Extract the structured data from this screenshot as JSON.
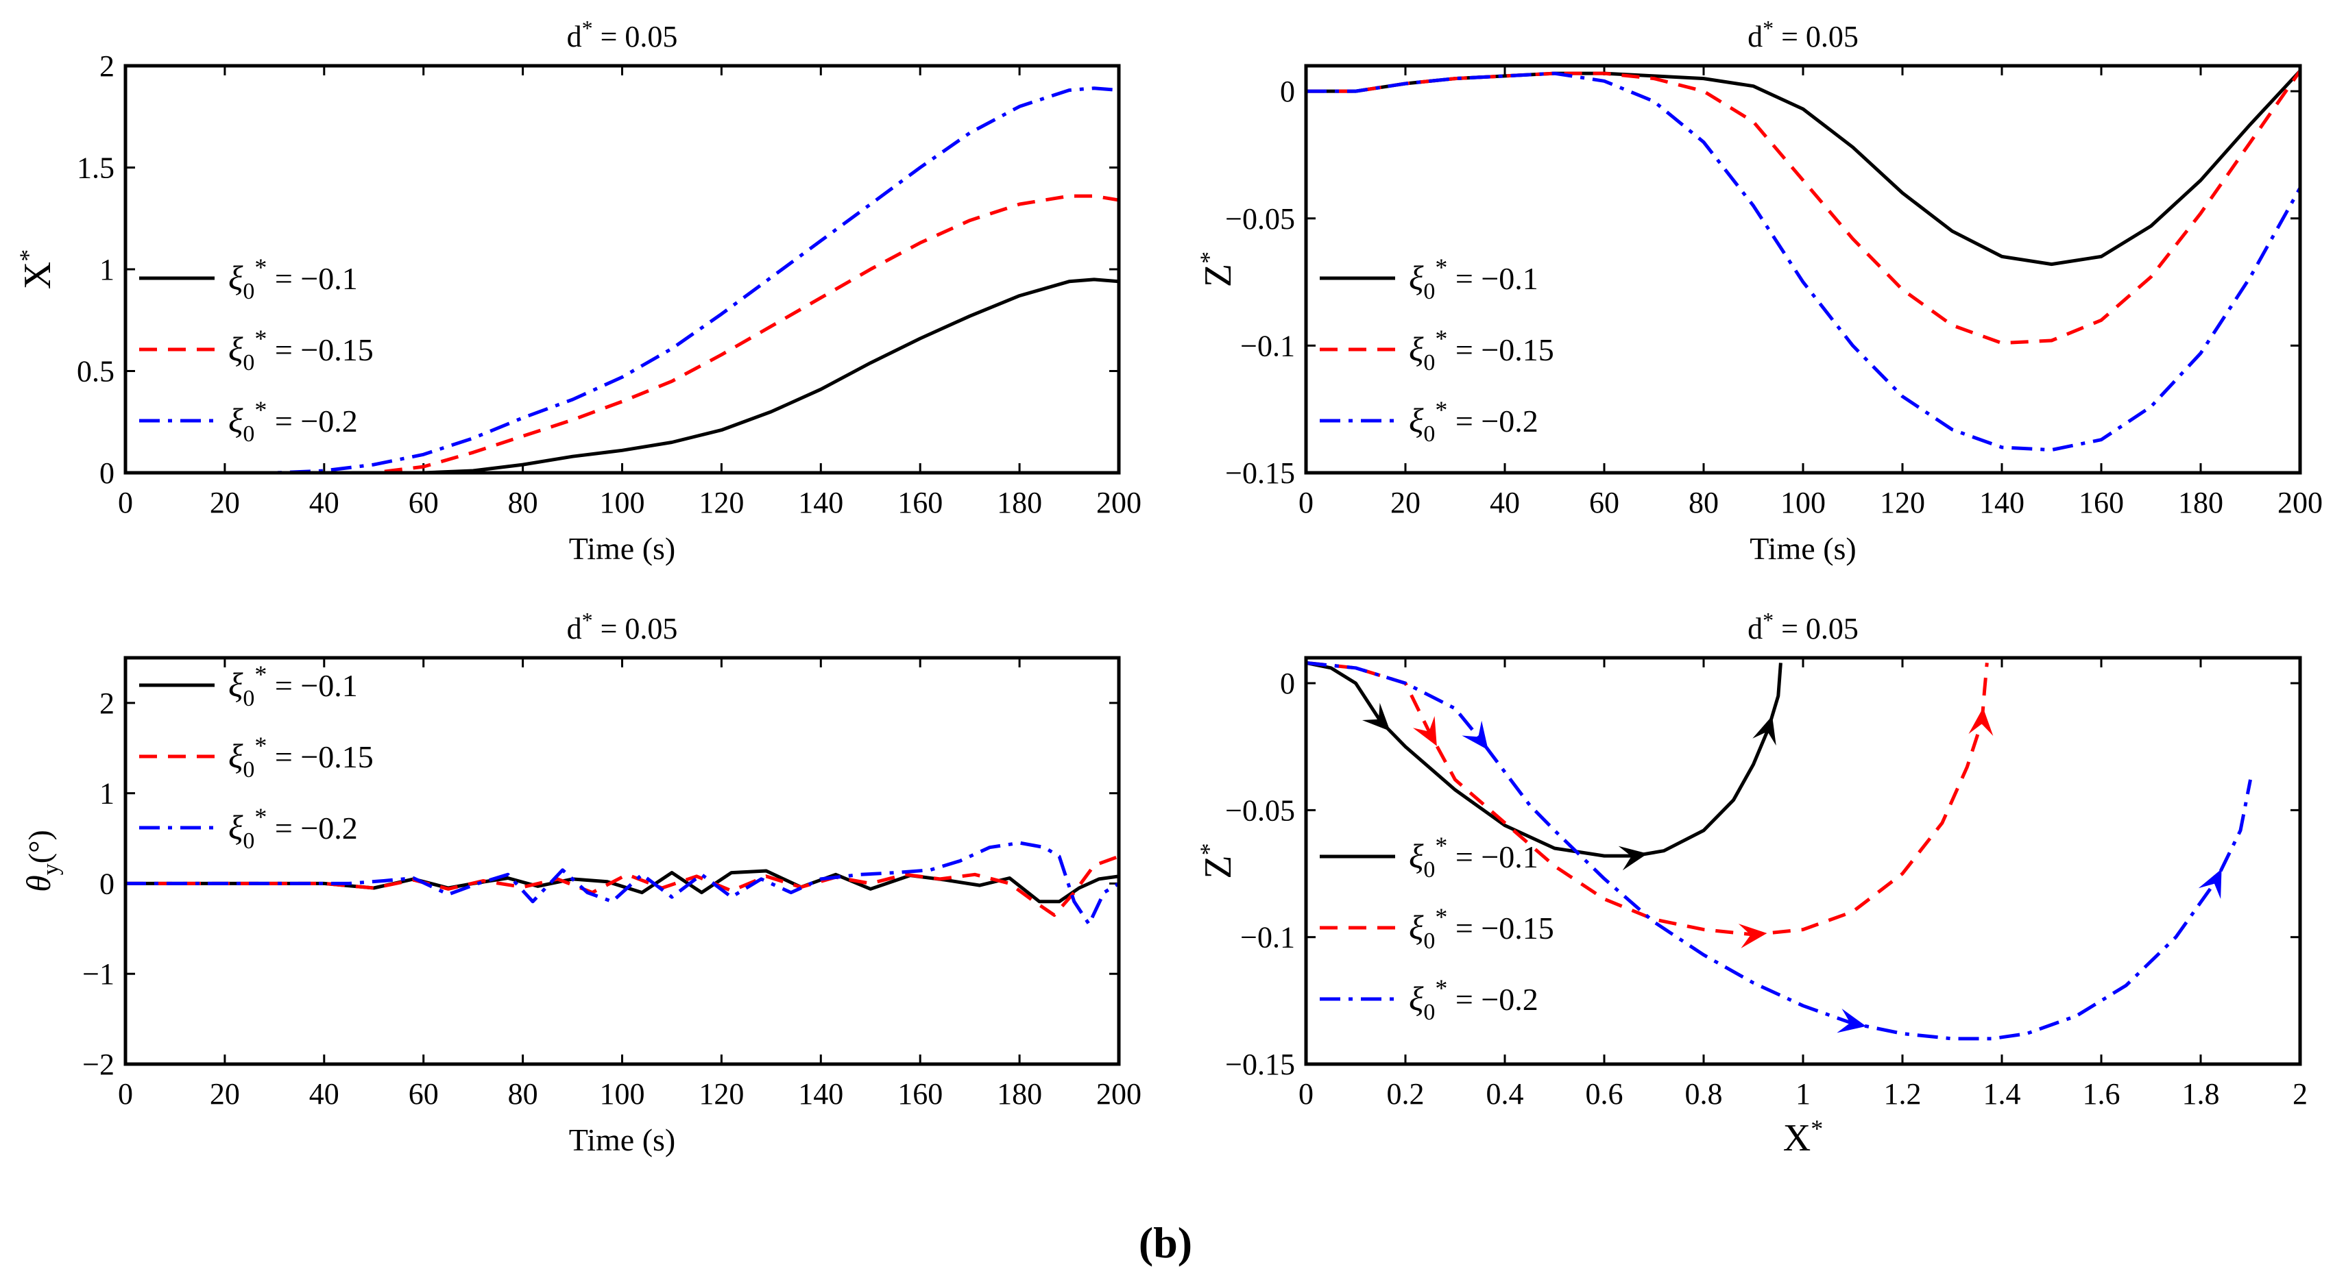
{
  "colors": {
    "s1": "#000000",
    "s2": "#ff0000",
    "s3": "#0000ff"
  },
  "caption": "(b)",
  "legend_labels": [
    "ξ₀* = −0.1",
    "ξ₀* = −0.15",
    "ξ₀* = −0.2"
  ],
  "chart_data": [
    {
      "type": "line",
      "title": "d* = 0.05",
      "xlabel": "Time (s)",
      "ylabel": "X*",
      "xlim": [
        0,
        200
      ],
      "ylim": [
        0,
        2
      ],
      "xticks": [
        0,
        20,
        40,
        60,
        80,
        100,
        120,
        140,
        160,
        180,
        200
      ],
      "yticks": [
        0,
        0.5,
        1,
        1.5,
        2
      ],
      "legend_position": "center-left",
      "series": [
        {
          "name": "ξ₀* = −0.1",
          "style": "solid",
          "color": "#000000",
          "x": [
            0,
            30,
            60,
            70,
            80,
            90,
            100,
            110,
            120,
            130,
            140,
            150,
            160,
            170,
            180,
            190,
            195,
            200
          ],
          "y": [
            0,
            0,
            0,
            0.01,
            0.04,
            0.08,
            0.11,
            0.15,
            0.21,
            0.3,
            0.41,
            0.54,
            0.66,
            0.77,
            0.87,
            0.94,
            0.95,
            0.94
          ]
        },
        {
          "name": "ξ₀* = −0.15",
          "style": "dashed",
          "color": "#ff0000",
          "x": [
            0,
            40,
            50,
            60,
            70,
            80,
            90,
            100,
            110,
            120,
            130,
            140,
            150,
            160,
            170,
            180,
            190,
            195,
            200
          ],
          "y": [
            0,
            0,
            0,
            0.03,
            0.1,
            0.18,
            0.26,
            0.35,
            0.45,
            0.58,
            0.72,
            0.86,
            1.0,
            1.13,
            1.24,
            1.32,
            1.36,
            1.36,
            1.34
          ]
        },
        {
          "name": "ξ₀* = −0.2",
          "style": "dashdot",
          "color": "#0000ff",
          "x": [
            0,
            30,
            40,
            50,
            60,
            70,
            80,
            90,
            100,
            110,
            120,
            130,
            140,
            150,
            160,
            170,
            180,
            190,
            195,
            200
          ],
          "y": [
            0,
            0,
            0.01,
            0.04,
            0.09,
            0.17,
            0.27,
            0.36,
            0.47,
            0.61,
            0.78,
            0.96,
            1.14,
            1.32,
            1.5,
            1.67,
            1.8,
            1.88,
            1.89,
            1.88
          ]
        }
      ]
    },
    {
      "type": "line",
      "title": "d* = 0.05",
      "xlabel": "Time (s)",
      "ylabel": "Z*",
      "xlim": [
        0,
        200
      ],
      "ylim": [
        -0.15,
        0.01
      ],
      "xticks": [
        0,
        20,
        40,
        60,
        80,
        100,
        120,
        140,
        160,
        180,
        200
      ],
      "yticks": [
        0,
        -0.05,
        -0.1,
        -0.15
      ],
      "legend_position": "center-left",
      "series": [
        {
          "name": "ξ₀* = −0.1",
          "style": "solid",
          "color": "#000000",
          "x": [
            0,
            10,
            20,
            30,
            40,
            50,
            60,
            70,
            80,
            90,
            100,
            110,
            120,
            130,
            140,
            150,
            160,
            170,
            180,
            190,
            200
          ],
          "y": [
            0,
            0,
            0.003,
            0.005,
            0.006,
            0.007,
            0.007,
            0.006,
            0.005,
            0.002,
            -0.007,
            -0.022,
            -0.04,
            -0.055,
            -0.065,
            -0.068,
            -0.065,
            -0.053,
            -0.035,
            -0.013,
            0.008
          ]
        },
        {
          "name": "ξ₀* = −0.15",
          "style": "dashed",
          "color": "#ff0000",
          "x": [
            0,
            10,
            20,
            30,
            40,
            50,
            60,
            70,
            80,
            90,
            100,
            110,
            120,
            130,
            140,
            150,
            160,
            170,
            180,
            190,
            200
          ],
          "y": [
            0,
            0,
            0.003,
            0.005,
            0.006,
            0.007,
            0.007,
            0.005,
            0.0,
            -0.012,
            -0.035,
            -0.058,
            -0.078,
            -0.092,
            -0.099,
            -0.098,
            -0.09,
            -0.073,
            -0.048,
            -0.02,
            0.008
          ]
        },
        {
          "name": "ξ₀* = −0.2",
          "style": "dashdot",
          "color": "#0000ff",
          "x": [
            0,
            10,
            20,
            30,
            40,
            50,
            60,
            70,
            80,
            90,
            100,
            110,
            120,
            130,
            140,
            150,
            160,
            170,
            180,
            190,
            200
          ],
          "y": [
            0,
            0,
            0.003,
            0.005,
            0.006,
            0.007,
            0.004,
            -0.004,
            -0.02,
            -0.045,
            -0.075,
            -0.1,
            -0.12,
            -0.133,
            -0.14,
            -0.141,
            -0.137,
            -0.124,
            -0.103,
            -0.073,
            -0.038
          ]
        }
      ]
    },
    {
      "type": "line",
      "title": "d* = 0.05",
      "xlabel": "Time (s)",
      "ylabel": "θy(°)",
      "xlim": [
        0,
        200
      ],
      "ylim": [
        -2,
        2.5
      ],
      "xticks": [
        0,
        20,
        40,
        60,
        80,
        100,
        120,
        140,
        160,
        180,
        200
      ],
      "yticks": [
        -2,
        -1,
        0,
        1,
        2
      ],
      "legend_position": "top-left",
      "series": [
        {
          "name": "ξ₀* = −0.1",
          "style": "solid",
          "color": "#000000",
          "x": [
            0,
            40,
            50,
            58,
            65,
            70,
            77,
            83,
            90,
            97,
            104,
            110,
            116,
            122,
            129,
            136,
            143,
            150,
            158,
            165,
            172,
            178,
            184,
            188,
            192,
            196,
            200
          ],
          "y": [
            0,
            0,
            -0.05,
            0.05,
            -0.05,
            0.0,
            0.06,
            -0.03,
            0.05,
            0.02,
            -0.1,
            0.12,
            -0.1,
            0.12,
            0.14,
            -0.04,
            0.1,
            -0.06,
            0.09,
            0.04,
            -0.02,
            0.06,
            -0.2,
            -0.2,
            -0.05,
            0.05,
            0.08
          ]
        },
        {
          "name": "ξ₀* = −0.15",
          "style": "dashed",
          "color": "#ff0000",
          "x": [
            0,
            40,
            50,
            58,
            65,
            72,
            80,
            87,
            94,
            101,
            108,
            115,
            122,
            129,
            136,
            143,
            150,
            157,
            164,
            171,
            178,
            183,
            187,
            191,
            195,
            200
          ],
          "y": [
            0,
            0,
            -0.05,
            0.04,
            -0.06,
            0.03,
            -0.04,
            0.05,
            -0.1,
            0.1,
            -0.05,
            0.08,
            -0.08,
            0.08,
            -0.04,
            0.07,
            0.0,
            0.1,
            0.05,
            0.1,
            0.0,
            -0.2,
            -0.35,
            -0.1,
            0.2,
            0.3
          ]
        },
        {
          "name": "ξ₀* = −0.2",
          "style": "dashdot",
          "color": "#0000ff",
          "x": [
            0,
            45,
            52,
            58,
            65,
            71,
            77,
            82,
            88,
            93,
            98,
            104,
            110,
            116,
            122,
            128,
            134,
            140,
            148,
            155,
            162,
            168,
            174,
            180,
            185,
            188,
            191,
            194,
            197,
            200
          ],
          "y": [
            0,
            0,
            0.03,
            0.06,
            -0.12,
            0.0,
            0.1,
            -0.2,
            0.15,
            -0.1,
            -0.2,
            0.1,
            -0.15,
            0.1,
            -0.15,
            0.05,
            -0.1,
            0.05,
            0.1,
            0.12,
            0.15,
            0.25,
            0.4,
            0.45,
            0.4,
            0.3,
            -0.2,
            -0.45,
            -0.1,
            0.0
          ]
        }
      ]
    },
    {
      "type": "line",
      "title": "d* = 0.05",
      "xlabel": "X*",
      "ylabel": "Z*",
      "xlim": [
        0,
        2
      ],
      "ylim": [
        -0.15,
        0.01
      ],
      "xticks": [
        0,
        0.2,
        0.4,
        0.6,
        0.8,
        1,
        1.2,
        1.4,
        1.6,
        1.8,
        2
      ],
      "yticks": [
        0,
        -0.05,
        -0.1,
        -0.15
      ],
      "legend_position": "bottom-left",
      "arrows": true,
      "series": [
        {
          "name": "ξ₀* = −0.1",
          "style": "solid",
          "color": "#000000",
          "x": [
            0,
            0.05,
            0.1,
            0.15,
            0.2,
            0.3,
            0.4,
            0.5,
            0.6,
            0.66,
            0.72,
            0.8,
            0.86,
            0.9,
            0.93,
            0.95,
            0.955
          ],
          "y": [
            0.008,
            0.006,
            0.0,
            -0.015,
            -0.025,
            -0.042,
            -0.056,
            -0.065,
            -0.068,
            -0.068,
            -0.066,
            -0.058,
            -0.046,
            -0.032,
            -0.018,
            -0.005,
            0.008
          ]
        },
        {
          "name": "ξ₀* = −0.15",
          "style": "dashed",
          "color": "#ff0000",
          "x": [
            0,
            0.1,
            0.2,
            0.25,
            0.3,
            0.4,
            0.5,
            0.6,
            0.7,
            0.8,
            0.9,
            1.0,
            1.1,
            1.2,
            1.28,
            1.33,
            1.36,
            1.365,
            1.37
          ],
          "y": [
            0.008,
            0.006,
            0.0,
            -0.02,
            -0.038,
            -0.055,
            -0.072,
            -0.085,
            -0.093,
            -0.097,
            -0.099,
            -0.097,
            -0.09,
            -0.075,
            -0.055,
            -0.033,
            -0.015,
            -0.003,
            0.008
          ]
        },
        {
          "name": "ξ₀* = −0.2",
          "style": "dashdot",
          "color": "#0000ff",
          "x": [
            0,
            0.1,
            0.2,
            0.3,
            0.35,
            0.4,
            0.45,
            0.5,
            0.6,
            0.7,
            0.8,
            0.9,
            1.0,
            1.1,
            1.2,
            1.3,
            1.38,
            1.45,
            1.55,
            1.65,
            1.75,
            1.83,
            1.88,
            1.9
          ],
          "y": [
            0.008,
            0.006,
            0.0,
            -0.01,
            -0.022,
            -0.035,
            -0.048,
            -0.058,
            -0.077,
            -0.094,
            -0.107,
            -0.118,
            -0.127,
            -0.134,
            -0.138,
            -0.14,
            -0.14,
            -0.138,
            -0.131,
            -0.119,
            -0.1,
            -0.078,
            -0.058,
            -0.038
          ]
        }
      ]
    }
  ]
}
